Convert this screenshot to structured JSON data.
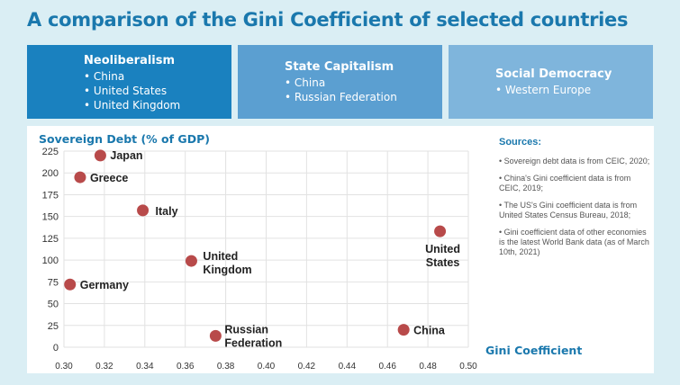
{
  "title": "A comparison of the Gini Coefficient of selected countries",
  "categories_boxes": [
    {
      "title": "Neoliberalism",
      "items": [
        "China",
        "United States",
        "United Kingdom"
      ],
      "color": "#1a81bf"
    },
    {
      "title": "State Capitalism",
      "items": [
        "China",
        "Russian Federation"
      ],
      "color": "#5b9fd1"
    },
    {
      "title": "Social Democracy",
      "items": [
        "Western Europe"
      ],
      "color": "#7fb5dc"
    }
  ],
  "sources": {
    "heading": "Sources:",
    "items": [
      "Sovereign debt data is from CEIC, 2020;",
      "China's Gini coefficient data is from CEIC, 2019;",
      "The US's Gini coefficient data is from United States Census Bureau, 2018;",
      "Gini coefficient data of other economies is the latest World Bank data (as of March 10th, 2021)"
    ]
  },
  "chart_data": {
    "type": "scatter",
    "title": "A comparison of the Gini Coefficient of selected countries",
    "xlabel": "Gini Coefficient",
    "ylabel": "Sovereign Debt (% of GDP)",
    "xlim": [
      0.3,
      0.5
    ],
    "ylim": [
      0,
      225
    ],
    "xticks": [
      "0.30",
      "0.32",
      "0.34",
      "0.36",
      "0.38",
      "0.40",
      "0.42",
      "0.44",
      "0.46",
      "0.48",
      "0.50"
    ],
    "yticks": [
      "0",
      "25",
      "50",
      "75",
      "100",
      "125",
      "150",
      "175",
      "200",
      "225"
    ],
    "grid": true,
    "marker_color": "#b84a4a",
    "points": [
      {
        "label": "Japan",
        "x": 0.318,
        "y": 220
      },
      {
        "label": "Greece",
        "x": 0.308,
        "y": 195
      },
      {
        "label": "Italy",
        "x": 0.339,
        "y": 157
      },
      {
        "label": "United Kingdom",
        "x": 0.363,
        "y": 99
      },
      {
        "label": "Germany",
        "x": 0.303,
        "y": 72
      },
      {
        "label": "Russian Federation",
        "x": 0.375,
        "y": 13
      },
      {
        "label": "China",
        "x": 0.468,
        "y": 20
      },
      {
        "label": "United States",
        "x": 0.486,
        "y": 133
      }
    ]
  }
}
